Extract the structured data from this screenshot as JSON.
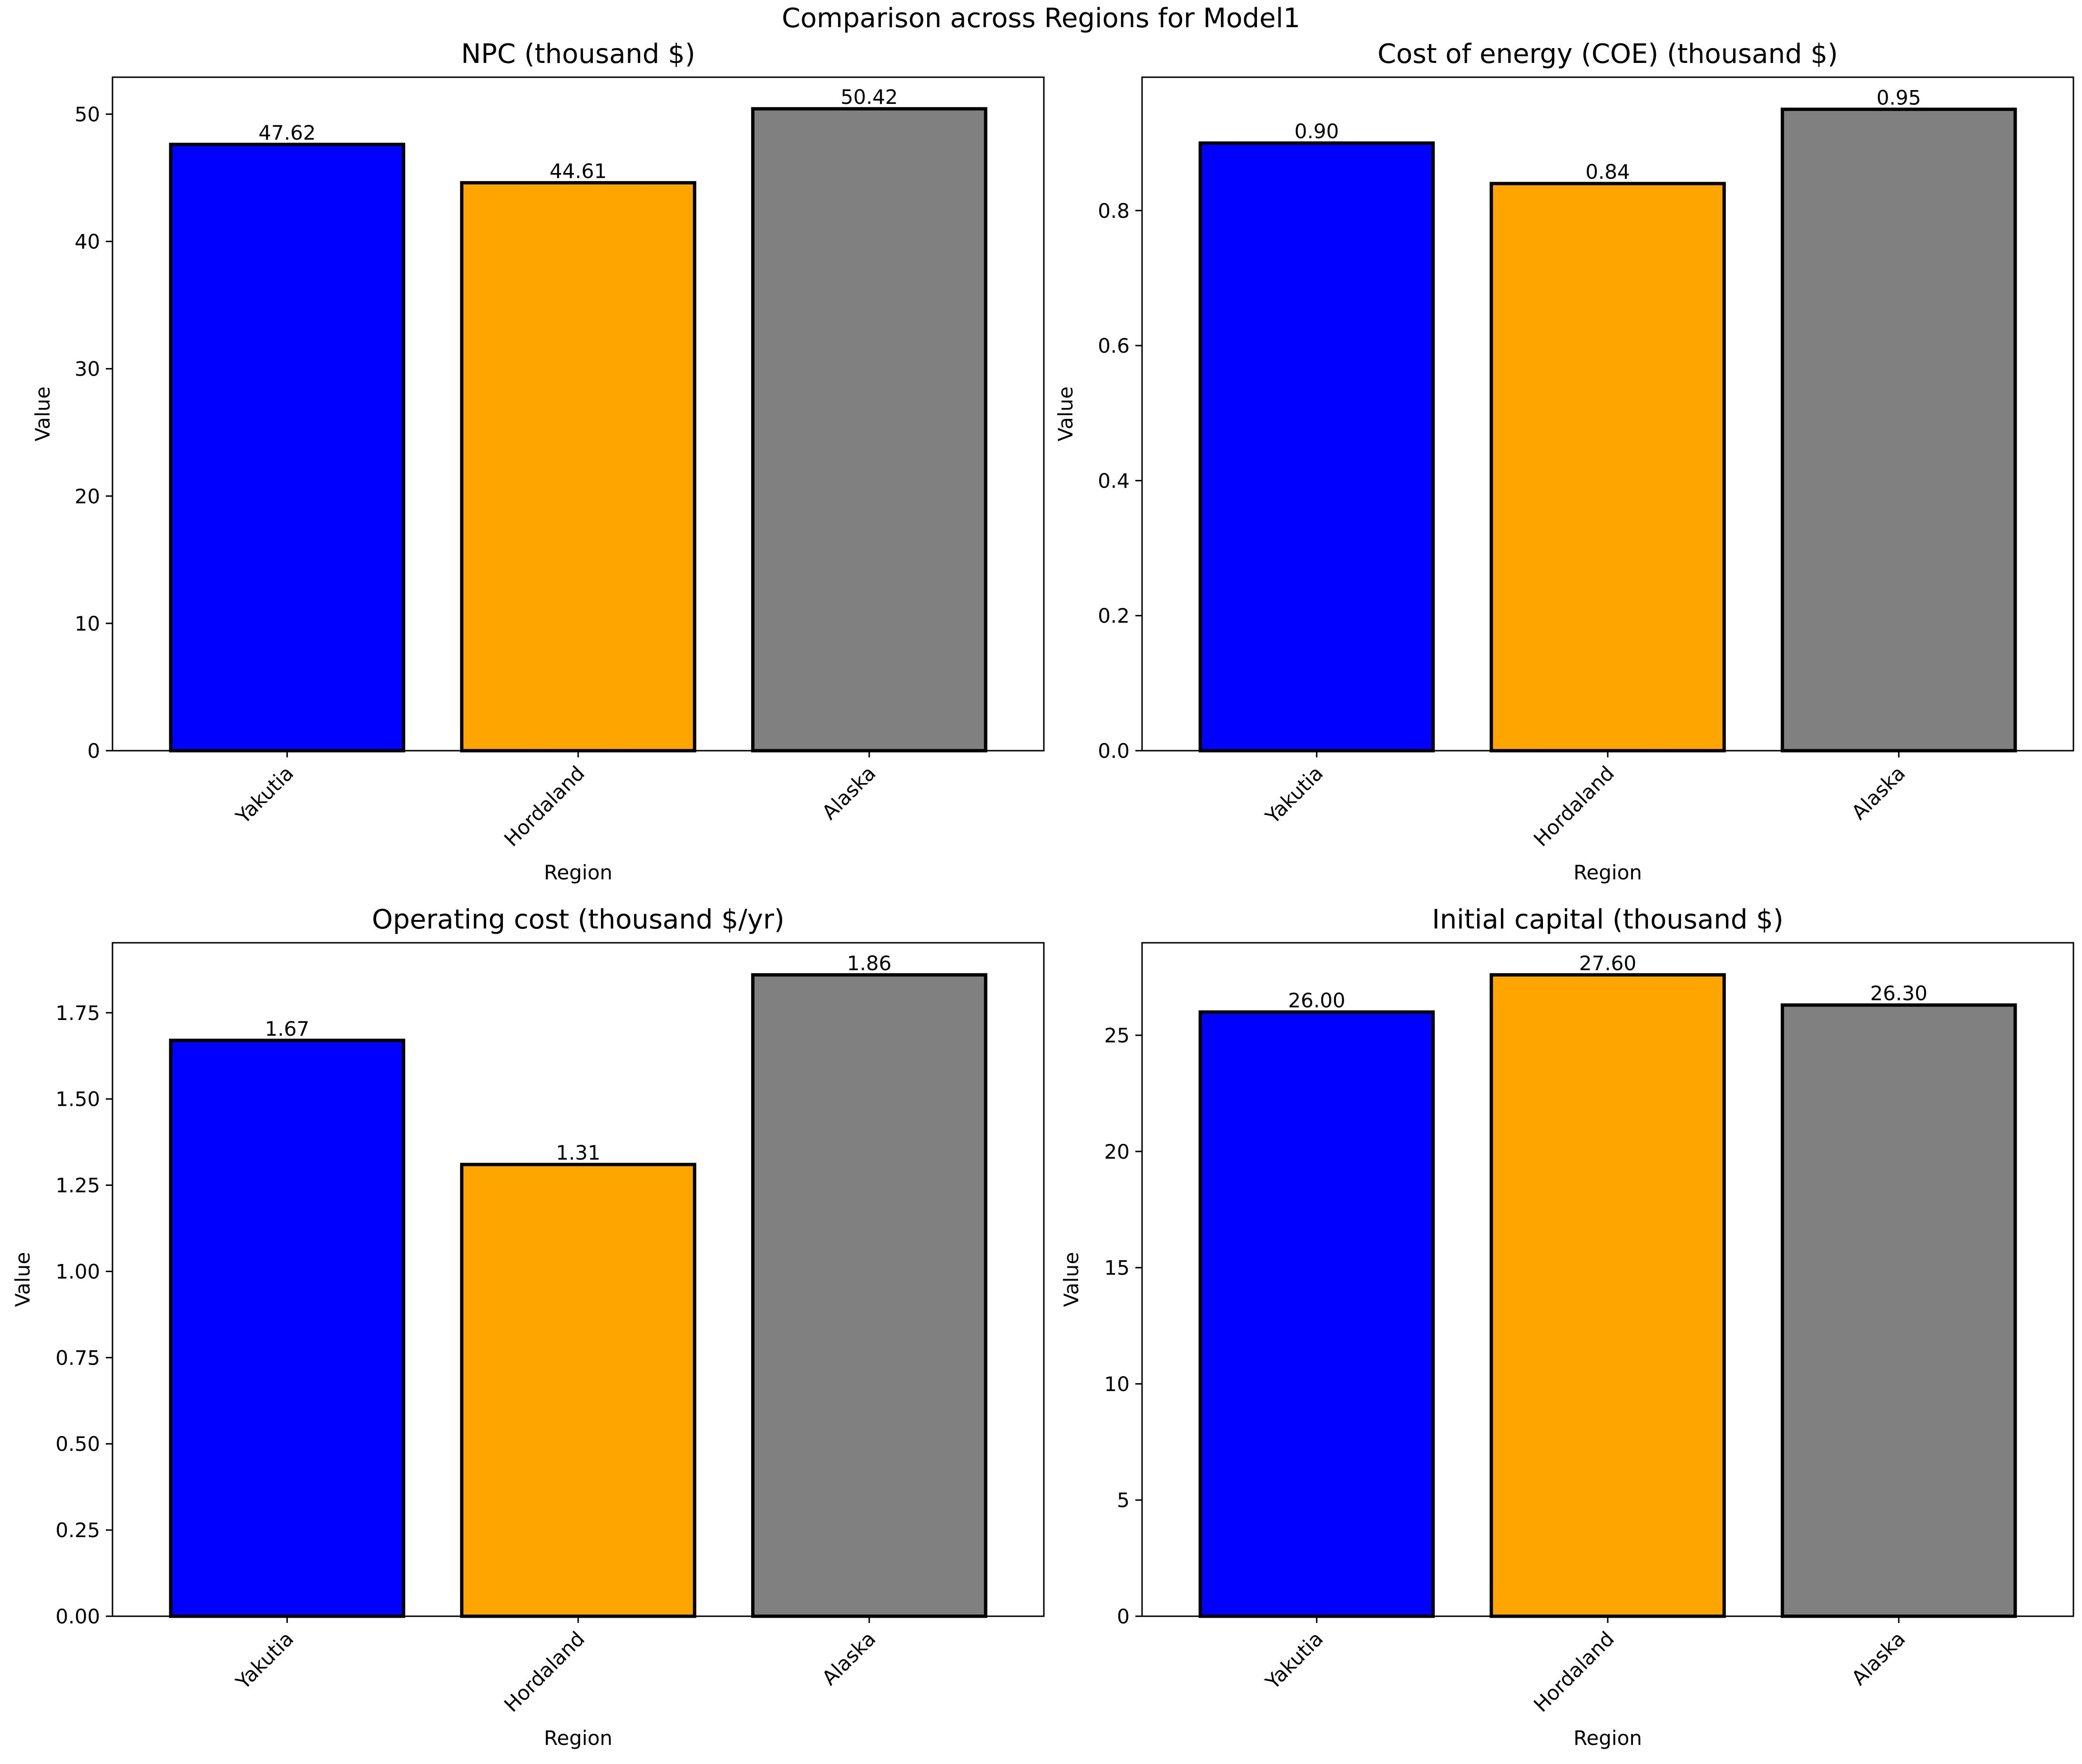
{
  "figure_title": "Comparison across Regions for Model1",
  "chart_data": [
    {
      "type": "bar",
      "title": "NPC (thousand $)",
      "categories": [
        "Yakutia",
        "Hordaland",
        "Alaska"
      ],
      "values": [
        47.62,
        44.61,
        50.42
      ],
      "value_labels": [
        "47.62",
        "44.61",
        "50.42"
      ],
      "xlabel": "Region",
      "ylabel": "Value",
      "ylim": [
        0,
        52.9
      ],
      "yticks": [
        0,
        10,
        20,
        30,
        40,
        50
      ],
      "ytick_labels": [
        "0",
        "10",
        "20",
        "30",
        "40",
        "50"
      ],
      "colors": [
        "#0000ff",
        "#ffa500",
        "#808080"
      ]
    },
    {
      "type": "bar",
      "title": "Cost of energy (COE) (thousand $)",
      "categories": [
        "Yakutia",
        "Hordaland",
        "Alaska"
      ],
      "values": [
        0.9,
        0.84,
        0.95
      ],
      "value_labels": [
        "0.90",
        "0.84",
        "0.95"
      ],
      "xlabel": "Region",
      "ylabel": "Value",
      "ylim": [
        0,
        0.9975
      ],
      "yticks": [
        0.0,
        0.2,
        0.4,
        0.6,
        0.8
      ],
      "ytick_labels": [
        "0.0",
        "0.2",
        "0.4",
        "0.6",
        "0.8"
      ],
      "colors": [
        "#0000ff",
        "#ffa500",
        "#808080"
      ]
    },
    {
      "type": "bar",
      "title": "Operating cost (thousand $/yr)",
      "categories": [
        "Yakutia",
        "Hordaland",
        "Alaska"
      ],
      "values": [
        1.67,
        1.31,
        1.86
      ],
      "value_labels": [
        "1.67",
        "1.31",
        "1.86"
      ],
      "xlabel": "Region",
      "ylabel": "Value",
      "ylim": [
        0,
        1.953
      ],
      "yticks": [
        0.0,
        0.25,
        0.5,
        0.75,
        1.0,
        1.25,
        1.5,
        1.75
      ],
      "ytick_labels": [
        "0.00",
        "0.25",
        "0.50",
        "0.75",
        "1.00",
        "1.25",
        "1.50",
        "1.75"
      ],
      "colors": [
        "#0000ff",
        "#ffa500",
        "#808080"
      ]
    },
    {
      "type": "bar",
      "title": "Initial capital (thousand $)",
      "categories": [
        "Yakutia",
        "Hordaland",
        "Alaska"
      ],
      "values": [
        26.0,
        27.6,
        26.3
      ],
      "value_labels": [
        "26.00",
        "27.60",
        "26.30"
      ],
      "xlabel": "Region",
      "ylabel": "Value",
      "ylim": [
        0,
        28.98
      ],
      "yticks": [
        0,
        5,
        10,
        15,
        20,
        25
      ],
      "ytick_labels": [
        "0",
        "5",
        "10",
        "15",
        "20",
        "25"
      ],
      "colors": [
        "#0000ff",
        "#ffa500",
        "#808080"
      ]
    }
  ]
}
